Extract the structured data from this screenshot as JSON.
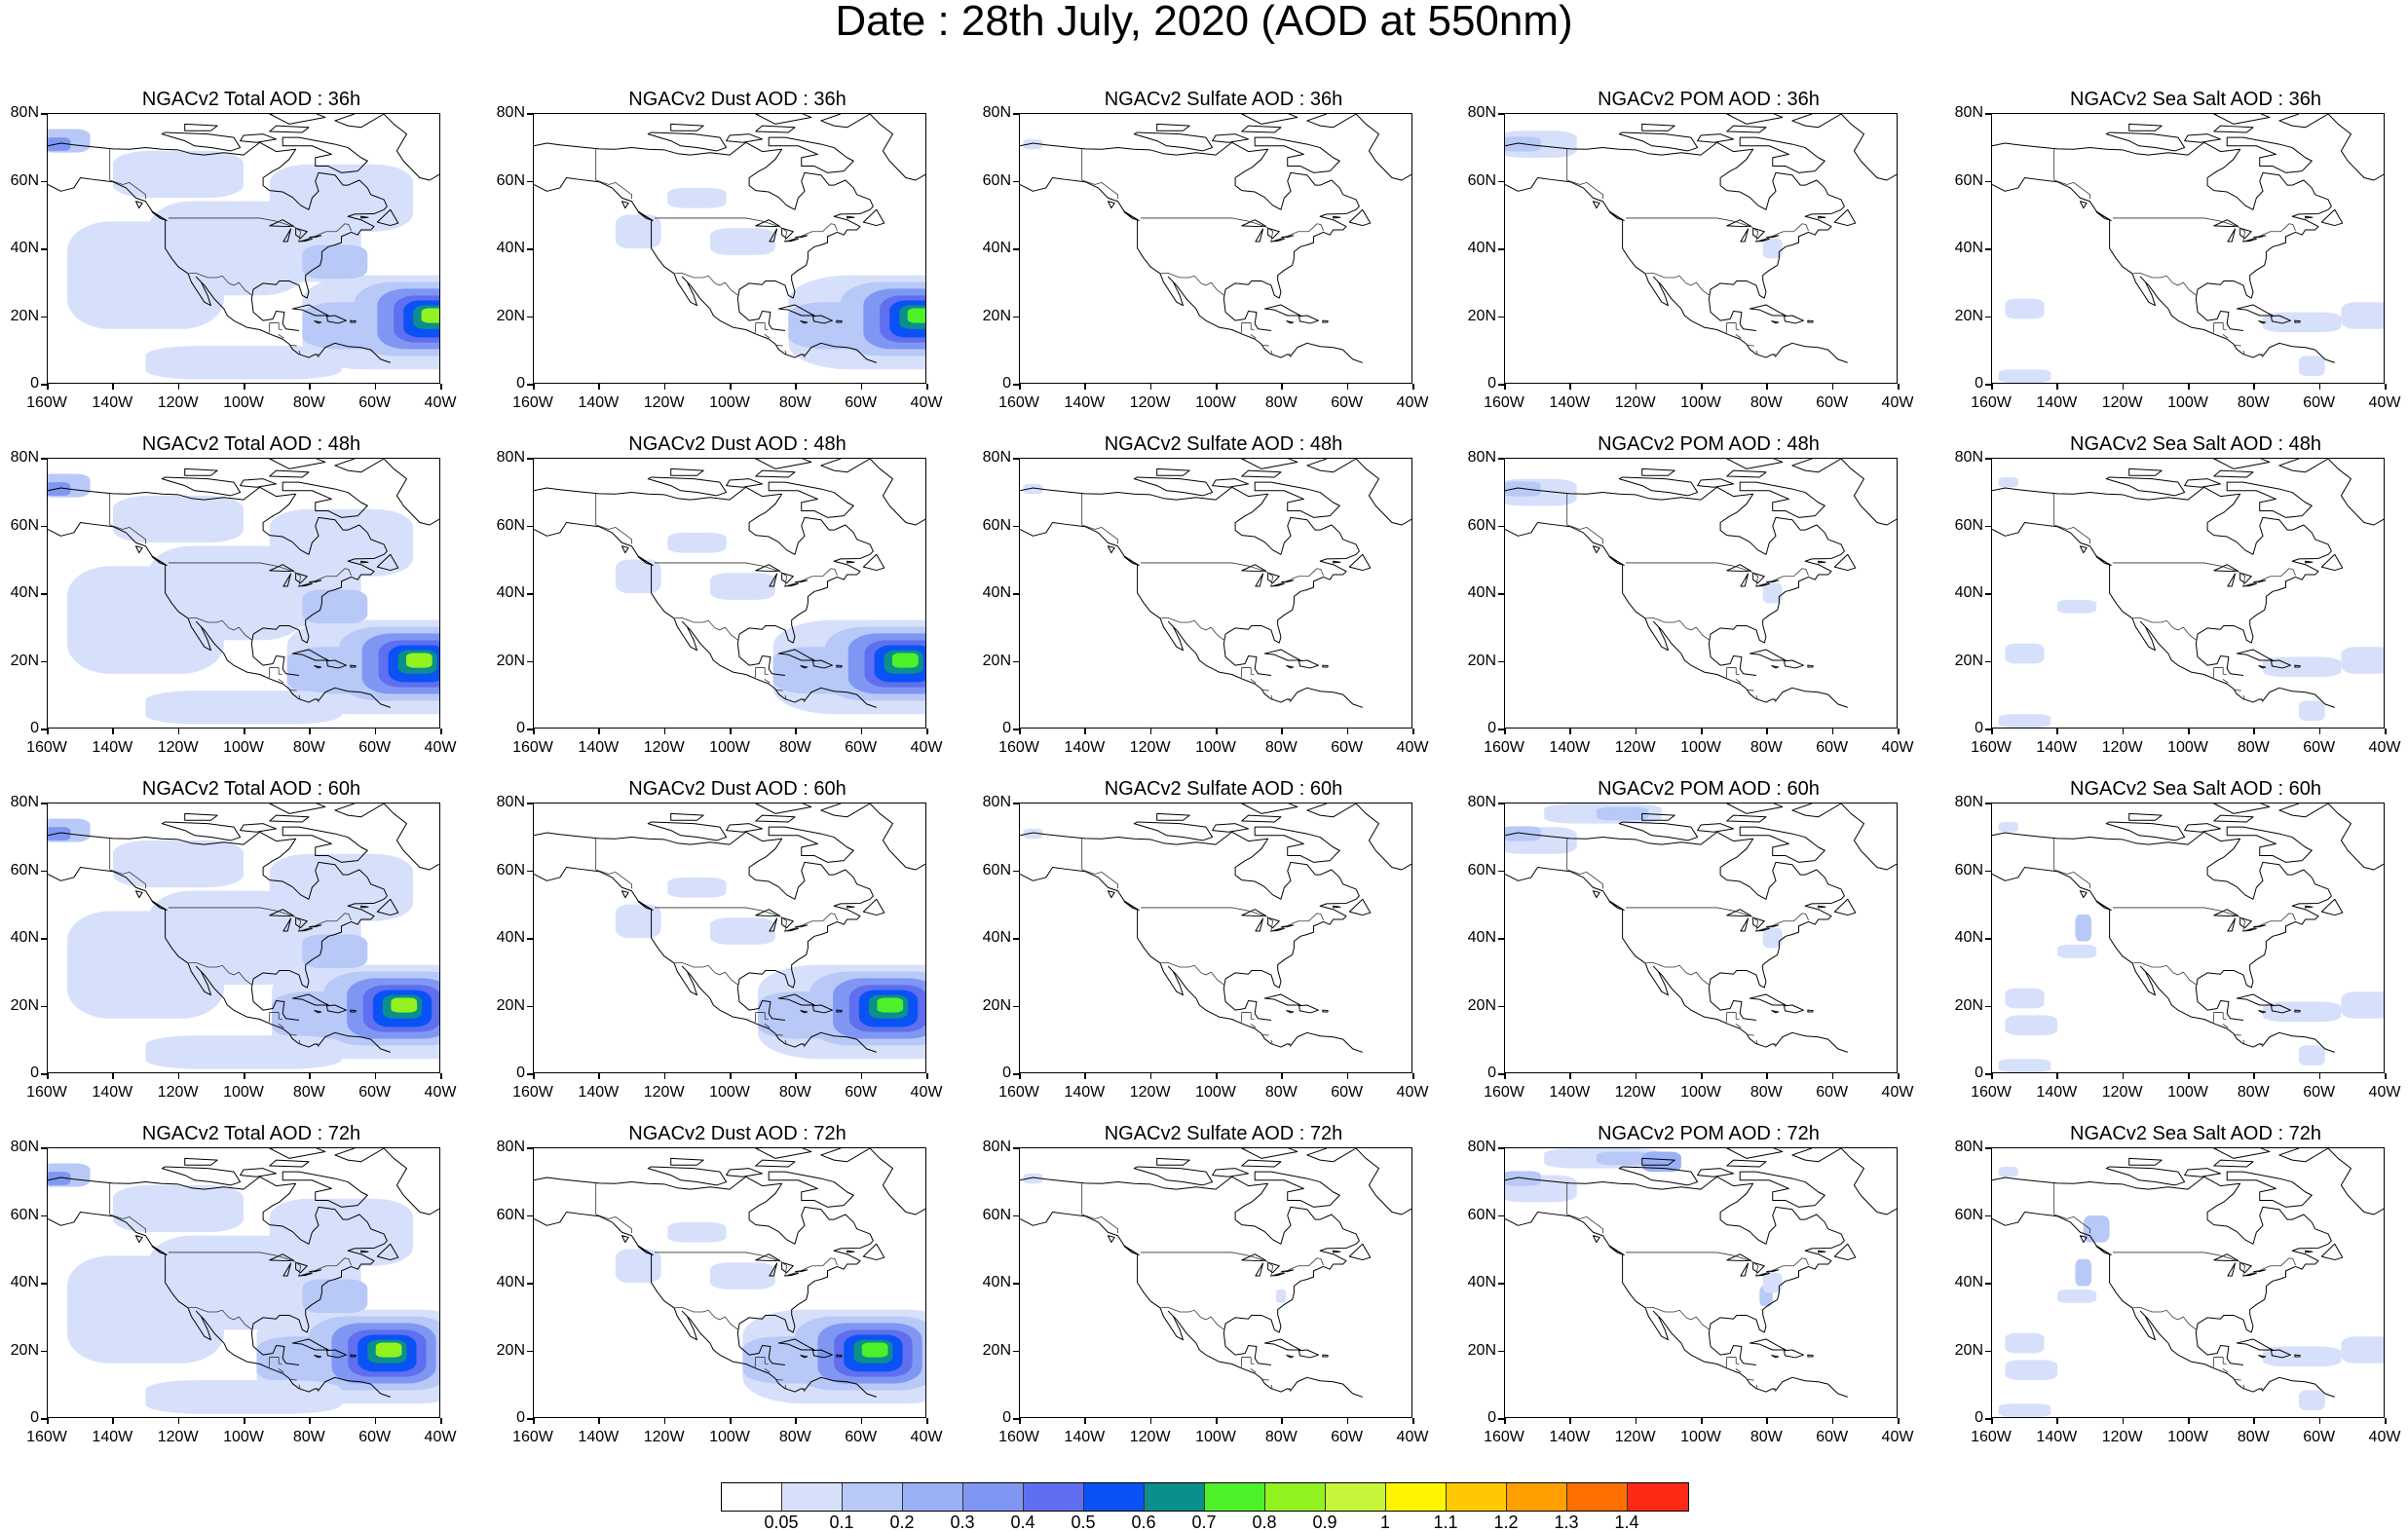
{
  "title": "Date : 28th July, 2020 (AOD at 550nm)",
  "panels": [
    {
      "title": "NGACv2 Total AOD : 36h",
      "species": "total",
      "hour": 36
    },
    {
      "title": "NGACv2 Dust AOD : 36h",
      "species": "dust",
      "hour": 36
    },
    {
      "title": "NGACv2 Sulfate AOD : 36h",
      "species": "sulfate",
      "hour": 36
    },
    {
      "title": "NGACv2 POM AOD : 36h",
      "species": "pom",
      "hour": 36
    },
    {
      "title": "NGACv2 Sea Salt AOD : 36h",
      "species": "seasalt",
      "hour": 36
    },
    {
      "title": "NGACv2 Total AOD : 48h",
      "species": "total",
      "hour": 48
    },
    {
      "title": "NGACv2 Dust AOD : 48h",
      "species": "dust",
      "hour": 48
    },
    {
      "title": "NGACv2 Sulfate AOD : 48h",
      "species": "sulfate",
      "hour": 48
    },
    {
      "title": "NGACv2 POM AOD : 48h",
      "species": "pom",
      "hour": 48
    },
    {
      "title": "NGACv2 Sea Salt AOD : 48h",
      "species": "seasalt",
      "hour": 48
    },
    {
      "title": "NGACv2 Total AOD : 60h",
      "species": "total",
      "hour": 60
    },
    {
      "title": "NGACv2 Dust AOD : 60h",
      "species": "dust",
      "hour": 60
    },
    {
      "title": "NGACv2 Sulfate AOD : 60h",
      "species": "sulfate",
      "hour": 60
    },
    {
      "title": "NGACv2 POM AOD : 60h",
      "species": "pom",
      "hour": 60
    },
    {
      "title": "NGACv2 Sea Salt AOD : 60h",
      "species": "seasalt",
      "hour": 60
    },
    {
      "title": "NGACv2 Total AOD : 72h",
      "species": "total",
      "hour": 72
    },
    {
      "title": "NGACv2 Dust AOD : 72h",
      "species": "dust",
      "hour": 72
    },
    {
      "title": "NGACv2 Sulfate AOD : 72h",
      "species": "sulfate",
      "hour": 72
    },
    {
      "title": "NGACv2 POM AOD : 72h",
      "species": "pom",
      "hour": 72
    },
    {
      "title": "NGACv2 Sea Salt  AOD : 72h",
      "species": "seasalt",
      "hour": 72
    }
  ],
  "axes": {
    "lat_labels": [
      "80N",
      "60N",
      "40N",
      "20N",
      "0"
    ],
    "lon_labels": [
      "160W",
      "140W",
      "120W",
      "100W",
      "80W",
      "60W",
      "40W"
    ]
  },
  "colorbar": {
    "colors": [
      "#ffffff",
      "#d7e0fb",
      "#b8c9f8",
      "#98b0f6",
      "#7f97f2",
      "#5f6ff0",
      "#0a52f5",
      "#0a8f8c",
      "#4ef02a",
      "#92f21f",
      "#c7f53a",
      "#fff500",
      "#ffc800",
      "#ff9f00",
      "#ff6f00",
      "#ff2a16"
    ],
    "labels": [
      "0.05",
      "0.1",
      "0.2",
      "0.3",
      "0.4",
      "0.5",
      "0.6",
      "0.7",
      "0.8",
      "0.9",
      "1",
      "1.1",
      "1.2",
      "1.3",
      "1.4"
    ]
  }
}
